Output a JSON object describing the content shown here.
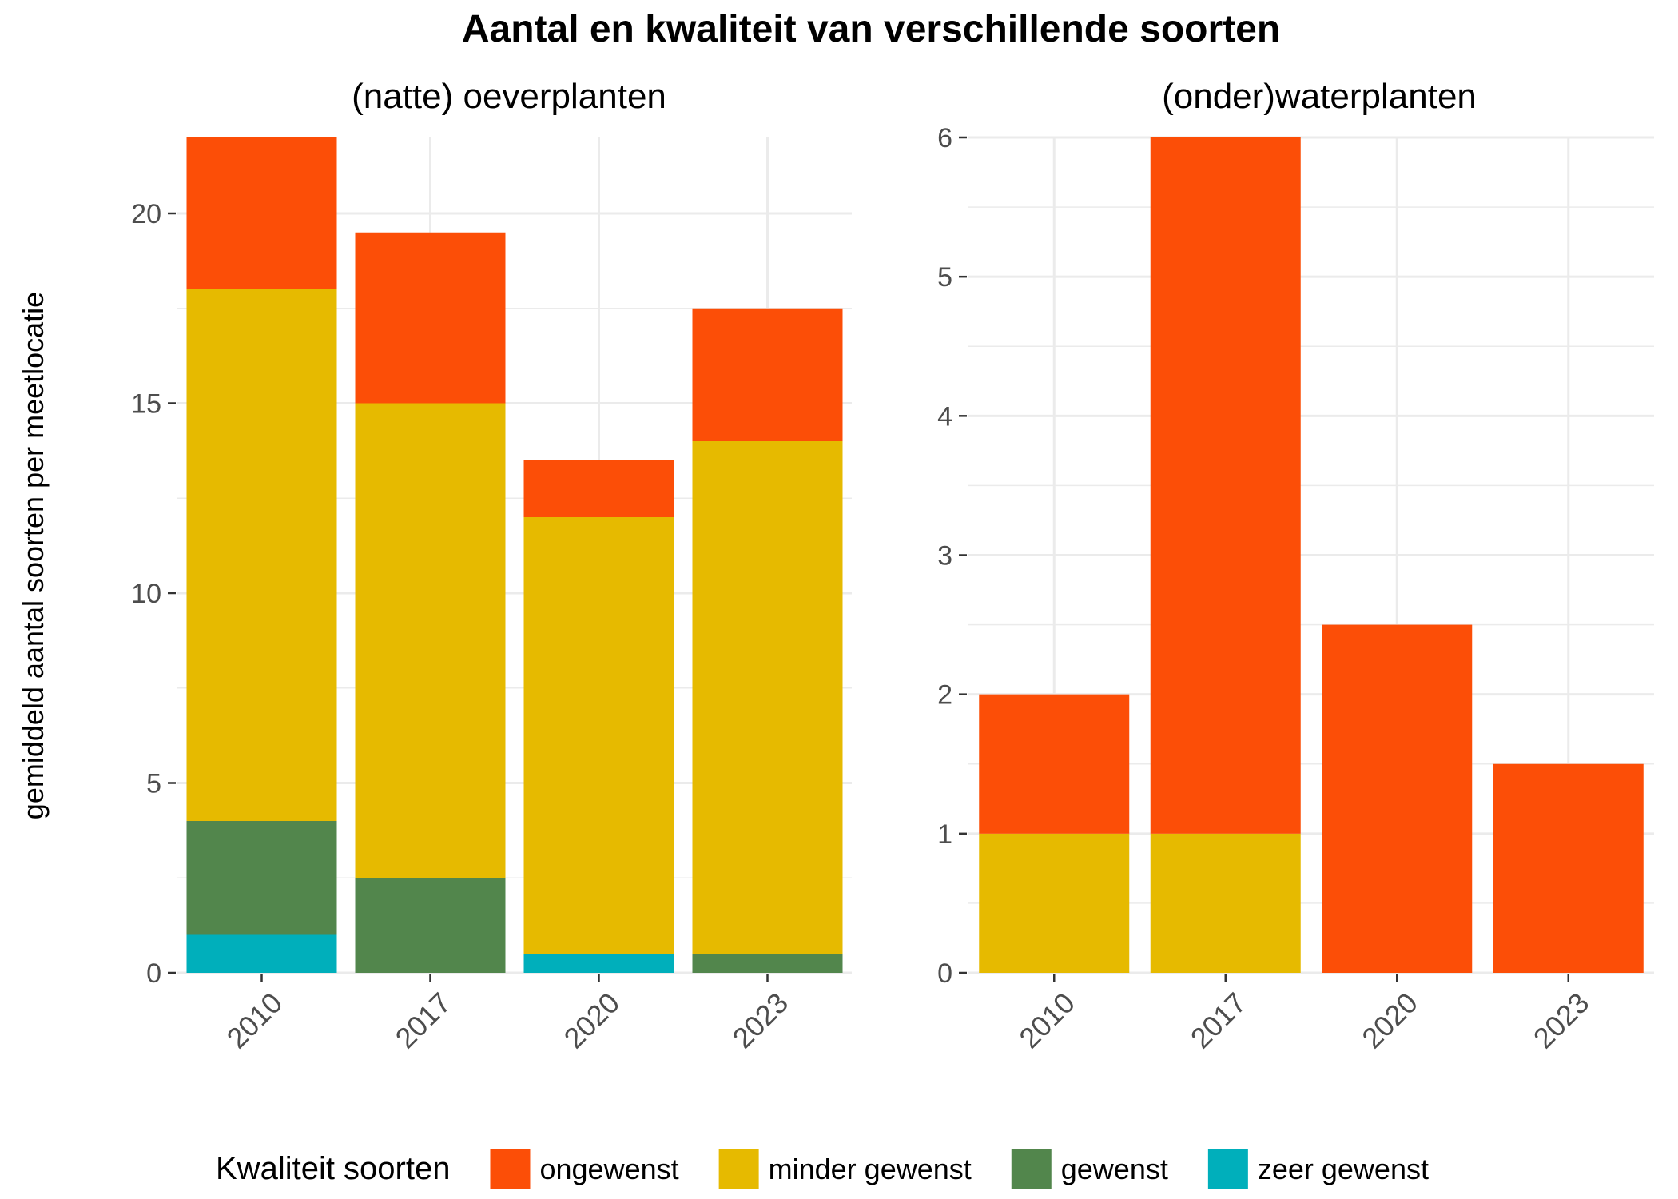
{
  "title": "Aantal en kwaliteit van verschillende soorten",
  "ylabel": "gemiddeld aantal soorten per meetlocatie",
  "legend": {
    "title": "Kwaliteit soorten",
    "position": "bottom",
    "items": [
      {
        "label": "ongewenst",
        "color": "#FC4E07"
      },
      {
        "label": "minder gewenst",
        "color": "#E6BA00"
      },
      {
        "label": "gewenst",
        "color": "#52864C"
      },
      {
        "label": "zeer gewenst",
        "color": "#00AFBB"
      }
    ]
  },
  "chart_data": [
    {
      "type": "bar",
      "stacked": true,
      "title": "(natte) oeverplanten",
      "categories": [
        "2010",
        "2017",
        "2020",
        "2023"
      ],
      "ylim": [
        0,
        22
      ],
      "yticks": [
        0,
        5,
        10,
        15,
        20
      ],
      "grid": true,
      "series": [
        {
          "name": "zeer gewenst",
          "color": "#00AFBB",
          "values": [
            1,
            0,
            0.5,
            0
          ]
        },
        {
          "name": "gewenst",
          "color": "#52864C",
          "values": [
            3,
            2.5,
            0,
            0.5
          ]
        },
        {
          "name": "minder gewenst",
          "color": "#E6BA00",
          "values": [
            14,
            12.5,
            11.5,
            13.5
          ]
        },
        {
          "name": "ongewenst",
          "color": "#FC4E07",
          "values": [
            4,
            4.5,
            1.5,
            3.5
          ]
        }
      ]
    },
    {
      "type": "bar",
      "stacked": true,
      "title": "(onder)waterplanten",
      "categories": [
        "2010",
        "2017",
        "2020",
        "2023"
      ],
      "ylim": [
        0,
        6
      ],
      "yticks": [
        0,
        1,
        2,
        3,
        4,
        5,
        6
      ],
      "grid": true,
      "series": [
        {
          "name": "zeer gewenst",
          "color": "#00AFBB",
          "values": [
            0,
            0,
            0,
            0
          ]
        },
        {
          "name": "gewenst",
          "color": "#52864C",
          "values": [
            0,
            0,
            0,
            0
          ]
        },
        {
          "name": "minder gewenst",
          "color": "#E6BA00",
          "values": [
            1,
            1,
            0,
            0
          ]
        },
        {
          "name": "ongewenst",
          "color": "#FC4E07",
          "values": [
            1,
            5,
            2.5,
            1.5
          ]
        }
      ]
    }
  ]
}
